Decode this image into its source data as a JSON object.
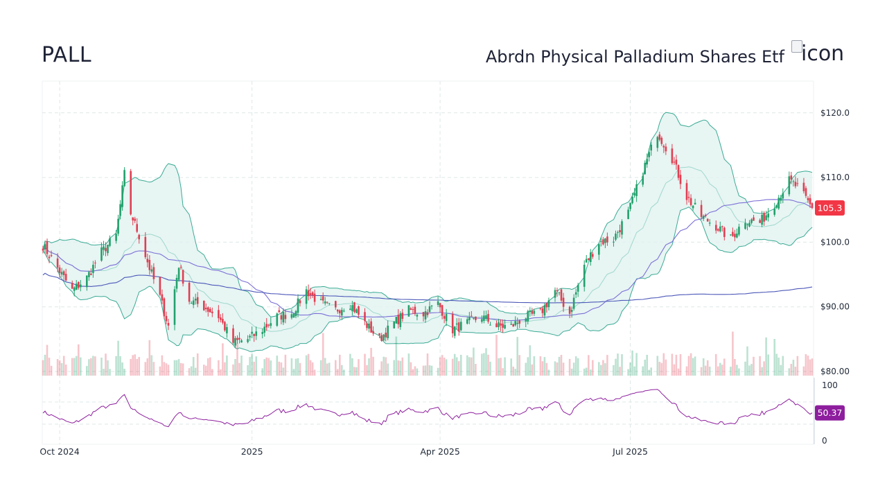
{
  "header": {
    "ticker": "PALL",
    "fund_name": "Abrdn Physical Palladium Shares Etf",
    "logo_alt": "icon"
  },
  "colors": {
    "up": "#22a06b",
    "down": "#e03e52",
    "band_fill": "#e3f3f1",
    "band_line": "#3aaa94",
    "ma_mid": "#9fd8cc",
    "ma50": "#7b6fd6",
    "ma200": "#4b57b8",
    "rsi": "#8e1e9e",
    "price_badge": "#f23645",
    "rsi_badge": "#8e1e9e",
    "grid": "#dde7e7"
  },
  "chart_data": {
    "type": "candlestick",
    "price_axis": {
      "ticks": [
        80,
        90,
        100,
        110,
        120
      ],
      "tick_labels": [
        "$80.00",
        "$90.00",
        "$100.0",
        "$110.0",
        "$120.0"
      ],
      "ylim": [
        80,
        125
      ]
    },
    "rsi_axis": {
      "ticks": [
        0,
        100
      ],
      "tick_labels": [
        "0",
        "100"
      ],
      "ylim": [
        0,
        100
      ],
      "guides": [
        30,
        70
      ]
    },
    "x_axis": {
      "start": "2024-09-23",
      "end": "2025-09-26",
      "tick_labels": [
        {
          "date": "2024-10-01",
          "label": "Oct 2024"
        },
        {
          "date": "2025-01-01",
          "label": "2025"
        },
        {
          "date": "2025-04-01",
          "label": "Apr 2025"
        },
        {
          "date": "2025-07-01",
          "label": "Jul 2025"
        }
      ]
    },
    "last_price": "105.3",
    "last_rsi": "50.37",
    "close_anchors": [
      [
        "2024-09-23",
        99.5
      ],
      [
        "2024-09-30",
        96.0
      ],
      [
        "2024-10-07",
        92.5
      ],
      [
        "2024-10-14",
        94.5
      ],
      [
        "2024-10-21",
        98.5
      ],
      [
        "2024-10-28",
        101.0
      ],
      [
        "2024-11-01",
        110.5
      ],
      [
        "2024-11-04",
        104.5
      ],
      [
        "2024-11-08",
        101.0
      ],
      [
        "2024-11-13",
        96.0
      ],
      [
        "2024-11-18",
        91.5
      ],
      [
        "2024-11-22",
        87.0
      ],
      [
        "2024-11-27",
        96.5
      ],
      [
        "2024-12-02",
        91.0
      ],
      [
        "2024-12-09",
        90.0
      ],
      [
        "2024-12-16",
        88.5
      ],
      [
        "2024-12-23",
        84.5
      ],
      [
        "2024-12-30",
        85.0
      ],
      [
        "2025-01-06",
        86.5
      ],
      [
        "2025-01-13",
        88.5
      ],
      [
        "2025-01-20",
        89.0
      ],
      [
        "2025-01-27",
        92.5
      ],
      [
        "2025-02-03",
        90.5
      ],
      [
        "2025-02-10",
        89.5
      ],
      [
        "2025-02-17",
        90.5
      ],
      [
        "2025-02-24",
        87.5
      ],
      [
        "2025-03-03",
        85.0
      ],
      [
        "2025-03-10",
        87.5
      ],
      [
        "2025-03-17",
        89.5
      ],
      [
        "2025-03-24",
        89.0
      ],
      [
        "2025-03-31",
        90.5
      ],
      [
        "2025-04-07",
        86.5
      ],
      [
        "2025-04-14",
        87.5
      ],
      [
        "2025-04-21",
        88.5
      ],
      [
        "2025-04-28",
        87.0
      ],
      [
        "2025-05-05",
        87.0
      ],
      [
        "2025-05-12",
        88.5
      ],
      [
        "2025-05-19",
        89.0
      ],
      [
        "2025-05-26",
        92.5
      ],
      [
        "2025-06-02",
        89.0
      ],
      [
        "2025-06-09",
        96.5
      ],
      [
        "2025-06-16",
        100.0
      ],
      [
        "2025-06-23",
        100.5
      ],
      [
        "2025-06-30",
        104.5
      ],
      [
        "2025-07-07",
        111.0
      ],
      [
        "2025-07-14",
        117.0
      ],
      [
        "2025-07-21",
        113.0
      ],
      [
        "2025-07-28",
        107.0
      ],
      [
        "2025-08-04",
        104.0
      ],
      [
        "2025-08-11",
        102.5
      ],
      [
        "2025-08-18",
        100.5
      ],
      [
        "2025-08-25",
        103.5
      ],
      [
        "2025-09-01",
        103.0
      ],
      [
        "2025-09-08",
        106.0
      ],
      [
        "2025-09-15",
        109.5
      ],
      [
        "2025-09-19",
        108.5
      ],
      [
        "2025-09-26",
        105.3
      ]
    ],
    "series": [
      {
        "name": "Bollinger Bands (20, 2)",
        "kind": "band"
      },
      {
        "name": "SMA 20",
        "kind": "line"
      },
      {
        "name": "SMA 50",
        "kind": "line"
      },
      {
        "name": "SMA 200",
        "kind": "line"
      },
      {
        "name": "Volume",
        "kind": "bars"
      },
      {
        "name": "RSI 14",
        "kind": "line"
      }
    ]
  }
}
